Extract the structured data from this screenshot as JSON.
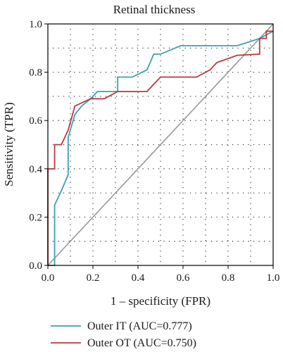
{
  "chart_data": {
    "type": "line",
    "title": "Retinal thickness",
    "xlabel": "1 – specificity (FPR)",
    "ylabel": "Sensitivity (TPR)",
    "xlim": [
      0,
      1
    ],
    "ylim": [
      0,
      1
    ],
    "x_ticks": [
      "0.0",
      "0.2",
      "0.4",
      "0.6",
      "0.8",
      "1.0"
    ],
    "y_ticks": [
      "0.0",
      "0.2",
      "0.4",
      "0.6",
      "0.8",
      "1.0"
    ],
    "grid": true,
    "legend_position": "bottom",
    "series": [
      {
        "name": "Outer IT (AUC=0.777)",
        "color": "#3aa1b1",
        "points": [
          [
            0.0,
            0.0
          ],
          [
            0.03,
            0.0
          ],
          [
            0.03,
            0.25
          ],
          [
            0.06,
            0.31
          ],
          [
            0.09,
            0.375
          ],
          [
            0.09,
            0.53
          ],
          [
            0.12,
            0.625
          ],
          [
            0.15,
            0.66
          ],
          [
            0.19,
            0.69
          ],
          [
            0.22,
            0.72
          ],
          [
            0.31,
            0.72
          ],
          [
            0.31,
            0.78
          ],
          [
            0.375,
            0.78
          ],
          [
            0.44,
            0.81
          ],
          [
            0.47,
            0.875
          ],
          [
            0.5,
            0.875
          ],
          [
            0.59,
            0.91
          ],
          [
            0.84,
            0.91
          ],
          [
            0.875,
            0.92
          ],
          [
            0.94,
            0.94
          ],
          [
            1.0,
            0.97
          ]
        ]
      },
      {
        "name": "Outer OT (AUC=0.750)",
        "color": "#b8393f",
        "points": [
          [
            0.0,
            0.0
          ],
          [
            0.0,
            0.25
          ],
          [
            0.0,
            0.4
          ],
          [
            0.03,
            0.4
          ],
          [
            0.03,
            0.5
          ],
          [
            0.06,
            0.5
          ],
          [
            0.09,
            0.56
          ],
          [
            0.12,
            0.66
          ],
          [
            0.19,
            0.69
          ],
          [
            0.25,
            0.69
          ],
          [
            0.31,
            0.72
          ],
          [
            0.44,
            0.72
          ],
          [
            0.5,
            0.78
          ],
          [
            0.66,
            0.78
          ],
          [
            0.72,
            0.81
          ],
          [
            0.75,
            0.84
          ],
          [
            0.84,
            0.87
          ],
          [
            0.94,
            0.875
          ],
          [
            0.94,
            0.94
          ],
          [
            0.97,
            0.94
          ],
          [
            0.97,
            0.97
          ],
          [
            1.0,
            0.97
          ]
        ]
      }
    ],
    "reference_line_color": "#999999"
  }
}
